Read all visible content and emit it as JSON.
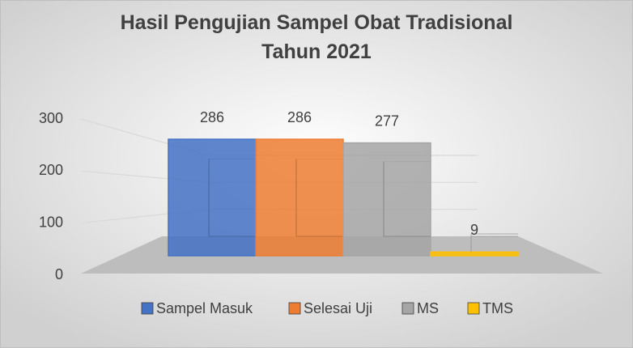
{
  "chart_data": {
    "type": "bar",
    "title": "Hasil Pengujian Sampel Obat Tradisional Tahun 2021",
    "categories": [
      null
    ],
    "series": [
      {
        "name": "Sampel Masuk",
        "color": "#4472c4",
        "values": [
          286
        ]
      },
      {
        "name": "Selesai Uji",
        "color": "#ed7d31",
        "values": [
          286
        ]
      },
      {
        "name": "MS",
        "color": "#a5a5a5",
        "values": [
          277
        ]
      },
      {
        "name": "TMS",
        "color": "#ffc000",
        "values": [
          9
        ]
      }
    ],
    "ylim": [
      0,
      300
    ],
    "yticks": [
      0,
      100,
      200,
      300
    ],
    "grid": true,
    "legend": "bottom"
  }
}
